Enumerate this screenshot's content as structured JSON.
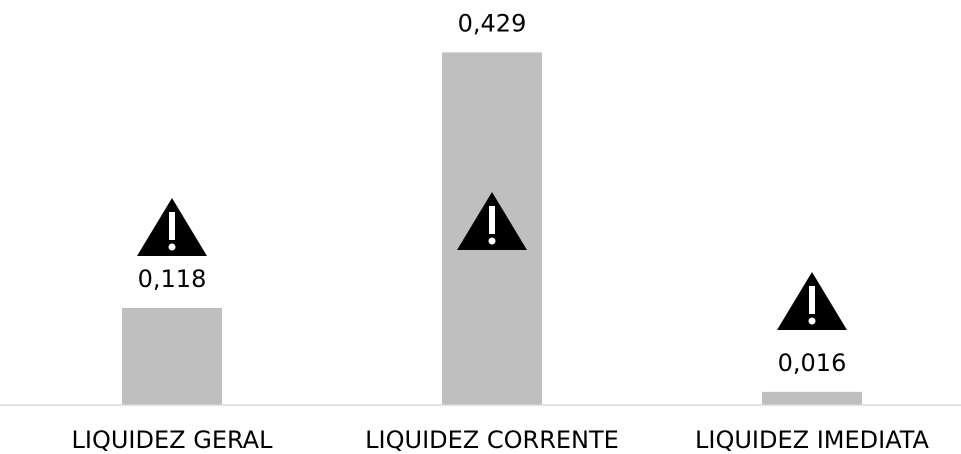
{
  "chart_data": {
    "type": "bar",
    "categories": [
      "LIQUIDEZ GERAL",
      "LIQUIDEZ CORRENTE",
      "LIQUIDEZ IMEDIATA"
    ],
    "values": [
      0.118,
      0.429,
      0.016
    ],
    "value_labels": [
      "0,118",
      "0,429",
      "0,016"
    ],
    "color": "#bfbfbf",
    "ylim": [
      0,
      0.5
    ]
  }
}
